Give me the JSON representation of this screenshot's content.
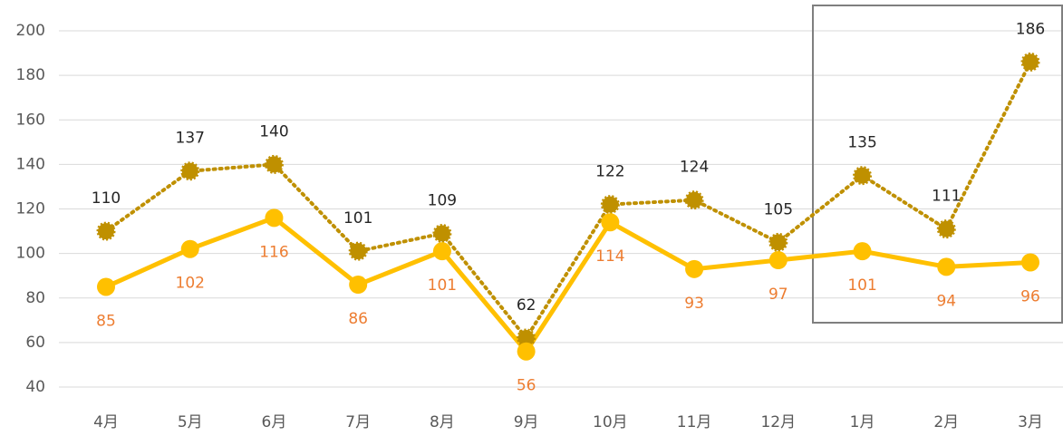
{
  "chart_data": {
    "type": "line",
    "categories": [
      "4月",
      "5月",
      "6月",
      "7月",
      "8月",
      "9月",
      "10月",
      "11月",
      "12月",
      "1月",
      "2月",
      "3月"
    ],
    "series": [
      {
        "color": "#bf9000",
        "style": "dotted",
        "label_color": "#262626",
        "label_position": "above",
        "values": [
          110,
          137,
          140,
          101,
          109,
          62,
          122,
          124,
          105,
          135,
          111,
          186
        ]
      },
      {
        "color": "#ffc000",
        "style": "solid",
        "label_color": "#ed7d31",
        "label_position": "below",
        "values": [
          85,
          102,
          116,
          86,
          101,
          56,
          114,
          93,
          97,
          101,
          94,
          96
        ]
      }
    ],
    "ylim": [
      40,
      200
    ],
    "yticks": [
      40,
      60,
      80,
      100,
      120,
      140,
      160,
      180,
      200
    ],
    "grid": true
  }
}
